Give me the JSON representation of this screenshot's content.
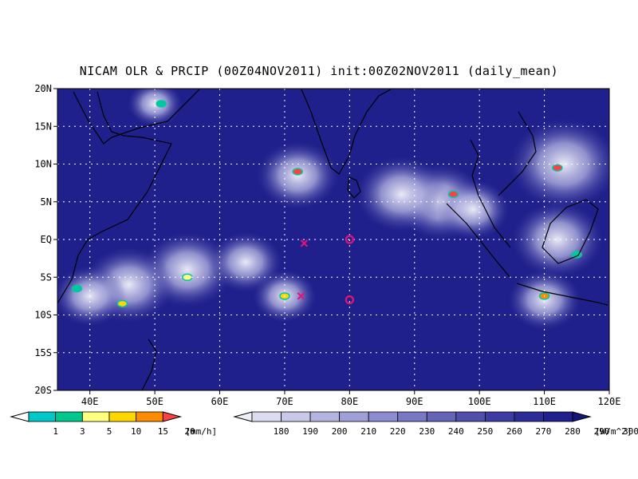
{
  "title": "NICAM OLR & PRCIP (00Z04NOV2011) init:00Z02NOV2011 (daily_mean)",
  "map": {
    "lon_range": [
      35,
      120
    ],
    "lat_range": [
      -20,
      20
    ],
    "lon_ticks": [
      "40E",
      "50E",
      "60E",
      "70E",
      "80E",
      "90E",
      "100E",
      "110E",
      "120E"
    ],
    "lat_ticks": [
      "20N",
      "15N",
      "10N",
      "5N",
      "EQ",
      "5S",
      "10S",
      "15S",
      "20S"
    ],
    "background_color": "#20208c",
    "markers": [
      {
        "type": "x",
        "lon": 73,
        "lat": -0.5,
        "color": "#e0147a"
      },
      {
        "type": "x",
        "lon": 72.5,
        "lat": -7.5,
        "color": "#e0147a"
      },
      {
        "type": "o",
        "lon": 80,
        "lat": 0,
        "color": "#e0147a"
      },
      {
        "type": "o",
        "lon": 80,
        "lat": -8,
        "color": "#e0147a"
      }
    ],
    "cloud_clusters": [
      {
        "lon": 72,
        "lat": 8.5,
        "r": 4.5
      },
      {
        "lon": 94,
        "lat": 5,
        "r": 5
      },
      {
        "lon": 88,
        "lat": 6,
        "r": 5
      },
      {
        "lon": 99,
        "lat": 4,
        "r": 4
      },
      {
        "lon": 113,
        "lat": 10,
        "r": 6
      },
      {
        "lon": 112,
        "lat": 0,
        "r": 5
      },
      {
        "lon": 110,
        "lat": -8,
        "r": 4
      },
      {
        "lon": 55,
        "lat": -4,
        "r": 5
      },
      {
        "lon": 46,
        "lat": -6,
        "r": 5
      },
      {
        "lon": 40,
        "lat": -7.5,
        "r": 4
      },
      {
        "lon": 70,
        "lat": -7.5,
        "r": 3.5
      },
      {
        "lon": 50,
        "lat": 18,
        "r": 3
      },
      {
        "lon": 64,
        "lat": -3,
        "r": 4
      }
    ],
    "rain_spots": [
      {
        "lon": 72,
        "lat": 9,
        "c": "#ff4040"
      },
      {
        "lon": 96,
        "lat": 6,
        "c": "#ff4040"
      },
      {
        "lon": 112,
        "lat": 9.5,
        "c": "#ff4040"
      },
      {
        "lon": 110,
        "lat": -7.5,
        "c": "#ff8c00"
      },
      {
        "lon": 45,
        "lat": -8.5,
        "c": "#ffd700"
      },
      {
        "lon": 55,
        "lat": -5,
        "c": "#ffff80"
      },
      {
        "lon": 70,
        "lat": -7.5,
        "c": "#ffd700"
      },
      {
        "lon": 51,
        "lat": 18,
        "c": "#00c8a0"
      },
      {
        "lon": 115,
        "lat": -2,
        "c": "#00c8a0"
      },
      {
        "lon": 38,
        "lat": -6.5,
        "c": "#00c8a0"
      }
    ]
  },
  "precip_colorbar": {
    "labels": [
      "1",
      "3",
      "5",
      "10",
      "15",
      "20"
    ],
    "unit": "[mm/h]",
    "colors": [
      "#00c8c8",
      "#00c88c",
      "#ffff80",
      "#ffd700",
      "#ff8c00",
      "#ff4040"
    ]
  },
  "olr_colorbar": {
    "labels": [
      "180",
      "190",
      "200",
      "210",
      "220",
      "230",
      "240",
      "250",
      "260",
      "270",
      "280",
      "290",
      "300"
    ],
    "unit": "[W/m^2]",
    "colors": [
      "#eeeef8",
      "#dcdcf0",
      "#c8c8e8",
      "#b4b4e0",
      "#a0a0d8",
      "#8c8cd0",
      "#7878c4",
      "#6464b8",
      "#5050ac",
      "#3c3ca4",
      "#2c2c98",
      "#20208c",
      "#14147a"
    ]
  }
}
